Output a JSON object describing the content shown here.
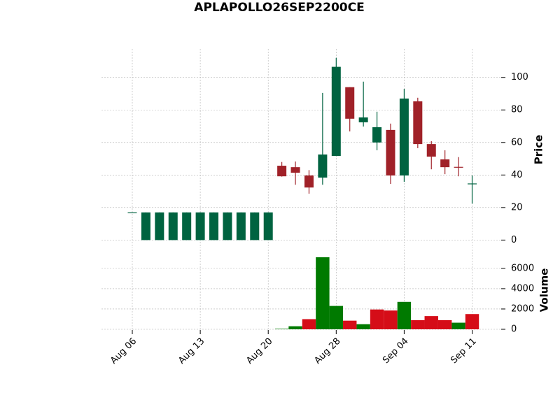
{
  "chart_data": {
    "type": "candlestick",
    "title": "APLAPOLLO26SEP2200CE",
    "ylabel": "Price",
    "volume_label": "Volume",
    "categories": [
      "Aug 06",
      null,
      null,
      null,
      null,
      "Aug 13",
      null,
      null,
      null,
      null,
      "Aug 20",
      null,
      null,
      null,
      null,
      "Aug 28",
      null,
      null,
      null,
      null,
      "Sep 04",
      null,
      null,
      null,
      null,
      "Sep 11"
    ],
    "open": [
      17,
      0,
      0,
      0,
      0,
      0,
      0,
      0,
      0,
      0,
      0,
      45.7,
      44.8,
      39.7,
      38.4,
      51.7,
      94,
      72.4,
      60,
      67.7,
      39.7,
      85.3,
      59,
      49.6,
      45,
      34.5
    ],
    "high": [
      17,
      17,
      17,
      17,
      17,
      17,
      17,
      17,
      17,
      17,
      17,
      48,
      48.3,
      43,
      90.5,
      112,
      94,
      97.4,
      78.9,
      71.6,
      93,
      87.5,
      60.8,
      55.2,
      51,
      39.7
    ],
    "low": [
      17,
      0,
      0,
      0,
      0,
      0,
      0,
      0,
      0,
      0,
      0,
      39,
      34,
      28.5,
      34,
      51.7,
      66.8,
      69.8,
      55.2,
      34.5,
      35.8,
      56.5,
      43.5,
      40.5,
      39.2,
      22.4
    ],
    "close": [
      17,
      17,
      17,
      17,
      17,
      17,
      17,
      17,
      17,
      17,
      17,
      39.2,
      41.4,
      32.3,
      52.6,
      106.5,
      74.6,
      75.4,
      69.4,
      39.7,
      87,
      59,
      51.3,
      44.8,
      44.8,
      34.8
    ],
    "volume": [
      0,
      0,
      0,
      0,
      0,
      0,
      0,
      0,
      0,
      0,
      0,
      50,
      300,
      1000,
      7100,
      2300,
      850,
      500,
      1950,
      1850,
      2700,
      900,
      1300,
      900,
      650,
      1500
    ],
    "up_color": "#006340",
    "down_color": "#a02128",
    "volume_colors": [
      "#007a00",
      "#007a00",
      "#007a00",
      "#007a00",
      "#007a00",
      "#007a00",
      "#007a00",
      "#007a00",
      "#007a00",
      "#007a00",
      "#007a00",
      "#007a00",
      "#007a00",
      "#d50d18",
      "#007a00",
      "#007a00",
      "#d50d18",
      "#007a00",
      "#d50d18",
      "#d50d18",
      "#007a00",
      "#d50d18",
      "#d50d18",
      "#d50d18",
      "#007a00",
      "#d50d18"
    ],
    "ylim": [
      -5,
      117.5
    ],
    "yticks": [
      0,
      20,
      40,
      60,
      80,
      100
    ],
    "volume_ylim": [
      0,
      7850
    ],
    "volume_yticks": [
      0,
      2000,
      4000,
      6000
    ],
    "grid": true
  }
}
